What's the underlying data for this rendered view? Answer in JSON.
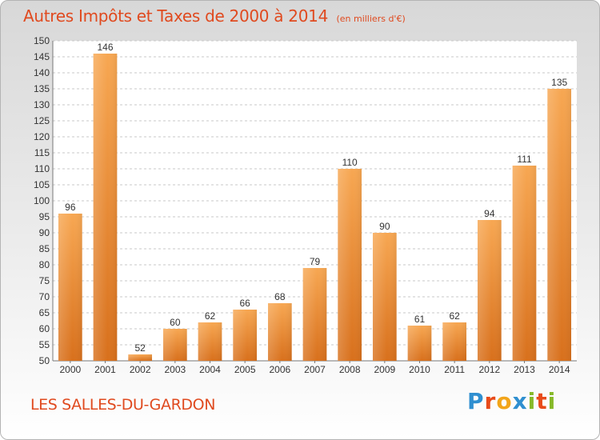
{
  "title": "Autres Impôts et Taxes de 2000 à 2014",
  "subtitle": "(en milliers d'€)",
  "commune": "LES SALLES-DU-GARDON",
  "brand": {
    "letters": [
      "P",
      "r",
      "o",
      "x",
      "i",
      "t",
      "i"
    ],
    "colors": [
      "#2f8fd0",
      "#e84b1a",
      "#f2a51a",
      "#2f8fd0",
      "#86b928",
      "#e84b1a",
      "#86b928"
    ]
  },
  "colors": {
    "accent": "#e04a1f",
    "bar_light": "#f7a752",
    "bar_dark": "#d8701c",
    "grid": "#c8c8c8"
  },
  "chart_data": {
    "type": "bar",
    "categories": [
      "2000",
      "2001",
      "2002",
      "2003",
      "2004",
      "2005",
      "2006",
      "2007",
      "2008",
      "2009",
      "2010",
      "2011",
      "2012",
      "2013",
      "2014"
    ],
    "values": [
      96,
      146,
      52,
      60,
      62,
      66,
      68,
      79,
      110,
      90,
      61,
      62,
      94,
      111,
      135
    ],
    "ylim": [
      50,
      150
    ],
    "yticks": [
      50,
      55,
      60,
      65,
      70,
      75,
      80,
      85,
      90,
      95,
      100,
      105,
      110,
      115,
      120,
      125,
      130,
      135,
      140,
      145,
      150
    ],
    "grid": true
  }
}
